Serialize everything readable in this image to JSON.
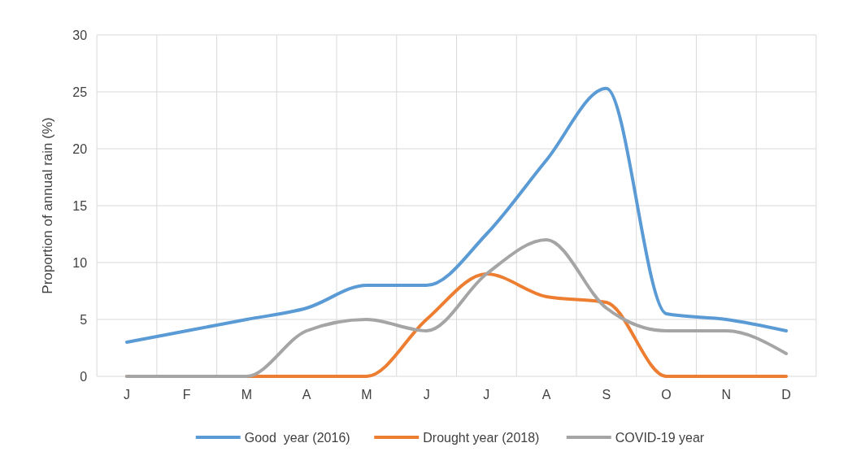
{
  "chart_data": {
    "type": "line",
    "ylabel": "Proportion of annual rain (%)",
    "categories": [
      "J",
      "F",
      "M",
      "A",
      "M",
      "J",
      "J",
      "A",
      "S",
      "O",
      "N",
      "D"
    ],
    "series": [
      {
        "name": "Good  year (2016)",
        "color": "#5b9bd5",
        "values": [
          3,
          4,
          5,
          6,
          8,
          8,
          12.5,
          19,
          25.3,
          5.5,
          5,
          4
        ]
      },
      {
        "name": "Drought year (2018)",
        "color": "#ed7d31",
        "values": [
          0,
          0,
          0,
          0,
          0,
          5,
          9,
          7,
          6.5,
          0,
          0,
          0
        ]
      },
      {
        "name": "COVID-19 year",
        "color": "#a5a5a5",
        "values": [
          0,
          0,
          0,
          4,
          5,
          4,
          9,
          12,
          6,
          4,
          4,
          2
        ]
      }
    ],
    "ylim": [
      0,
      30
    ],
    "yticks": [
      0,
      5,
      10,
      15,
      20,
      25,
      30
    ],
    "grid": true,
    "legend": "bottom",
    "marker": "none",
    "line_style": "solid"
  }
}
